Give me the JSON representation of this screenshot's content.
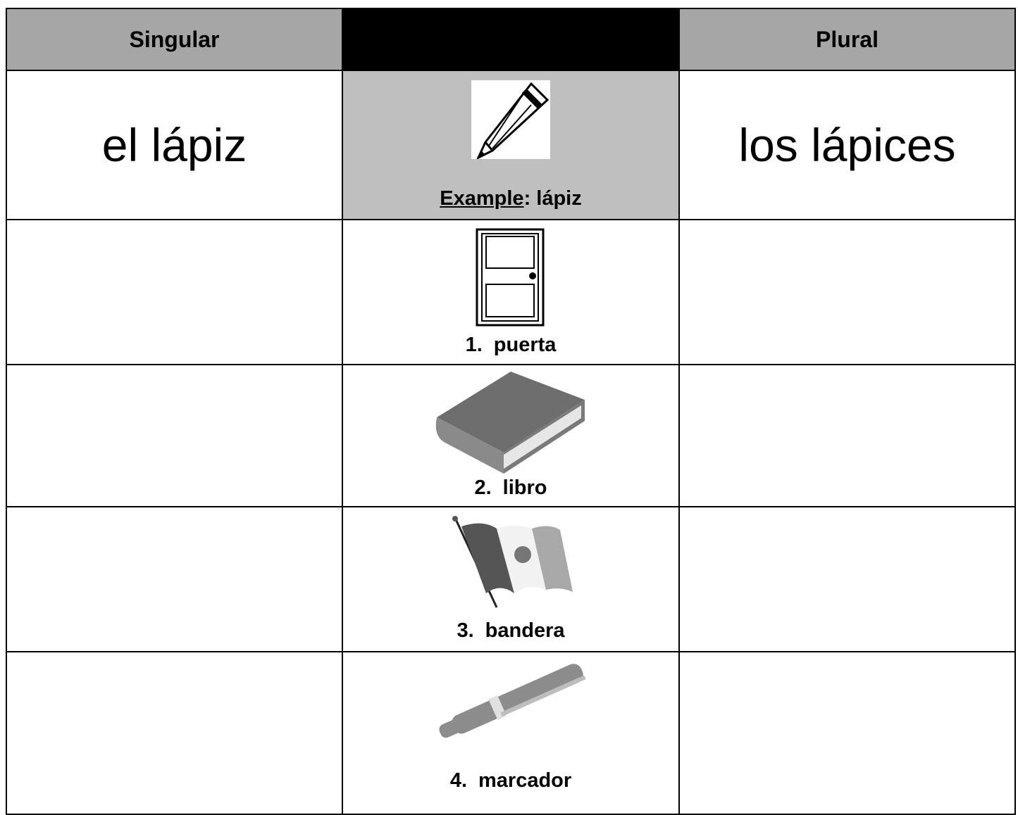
{
  "table": {
    "header": {
      "singular": "Singular",
      "plural": "Plural"
    },
    "example": {
      "singular": "el lápiz",
      "label": "Example",
      "rest": ": lápiz",
      "plural": "los lápices"
    },
    "items": [
      {
        "number": "1.",
        "word": "puerta"
      },
      {
        "number": "2.",
        "word": "libro"
      },
      {
        "number": "3.",
        "word": "bandera"
      },
      {
        "number": "4.",
        "word": "marcador"
      }
    ]
  }
}
